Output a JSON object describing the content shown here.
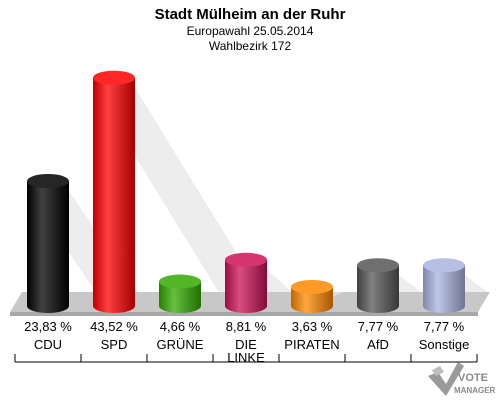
{
  "chart_data": {
    "type": "bar",
    "title": "Stadt Mülheim an der Ruhr",
    "subtitle_1": "Europawahl 25.05.2014",
    "subtitle_2": "Wahlbezirk 172",
    "categories": [
      "CDU",
      "SPD",
      "GRÜNE",
      "DIE LINKE",
      "PIRATEN",
      "AfD",
      "Sonstige"
    ],
    "category_lines": [
      [
        "CDU"
      ],
      [
        "SPD"
      ],
      [
        "GRÜNE"
      ],
      [
        "DIE",
        "LINKE"
      ],
      [
        "PIRATEN"
      ],
      [
        "AfD"
      ],
      [
        "Sonstige"
      ]
    ],
    "values": [
      23.83,
      43.52,
      4.66,
      8.81,
      3.63,
      7.77,
      7.77
    ],
    "value_labels": [
      "23,83 %",
      "43,52 %",
      "4,66 %",
      "8,81 %",
      "3,63 %",
      "7,77 %",
      "7,77 %"
    ],
    "colors": [
      "#000000",
      "#ff0000",
      "#33aa00",
      "#cc1155",
      "#ff8800",
      "#555555",
      "#aab4e0"
    ],
    "ylim": [
      0,
      45
    ],
    "grid": false,
    "legend": "none"
  },
  "watermark": {
    "line1": "VOTE",
    "line2": "MANAGER"
  }
}
